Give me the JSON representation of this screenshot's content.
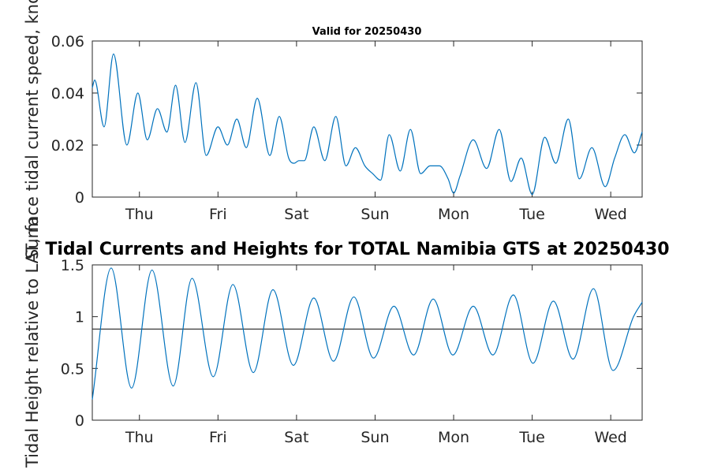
{
  "suptitle": "Tidal Currents and Heights for TOTAL Namibia GTS at 20250430",
  "colors": {
    "series": "#0072BD",
    "reference_line": "#262626"
  },
  "chart_data": [
    {
      "type": "line",
      "title": "Valid for 20250430",
      "xlabel": "",
      "ylabel": "Surface tidal current speed, knots",
      "xlim": [
        0,
        7
      ],
      "ylim": [
        0,
        0.06
      ],
      "x_ticks": [
        0.6,
        1.6,
        2.6,
        3.6,
        4.6,
        5.6,
        6.6
      ],
      "x_tick_labels": [
        "Thu",
        "Fri",
        "Sat",
        "Sun",
        "Mon",
        "Tue",
        "Wed"
      ],
      "y_ticks": [
        0,
        0.02,
        0.04,
        0.06
      ],
      "y_tick_labels": [
        "0",
        "0.02",
        "0.04",
        "0.06"
      ],
      "grid": false,
      "series": [
        {
          "x": [
            0,
            0.03,
            0.15,
            0.27,
            0.44,
            0.58,
            0.7,
            0.83,
            0.95,
            1.06,
            1.18,
            1.32,
            1.45,
            1.6,
            1.72,
            1.84,
            1.96,
            2.1,
            2.26,
            2.38,
            2.5,
            2.57,
            2.63,
            2.7,
            2.82,
            2.96,
            3.1,
            3.23,
            3.35,
            3.47,
            3.57,
            3.67,
            3.78,
            3.92,
            4.05,
            4.18,
            4.3,
            4.42,
            4.53,
            4.6,
            4.68,
            4.85,
            5.02,
            5.18,
            5.33,
            5.46,
            5.6,
            5.76,
            5.9,
            6.06,
            6.2,
            6.36,
            6.53,
            6.65,
            6.78,
            6.9,
            7.0
          ],
          "y": [
            0.042,
            0.045,
            0.027,
            0.055,
            0.02,
            0.04,
            0.022,
            0.034,
            0.025,
            0.043,
            0.021,
            0.044,
            0.016,
            0.027,
            0.02,
            0.03,
            0.019,
            0.038,
            0.016,
            0.031,
            0.015,
            0.013,
            0.014,
            0.014,
            0.027,
            0.014,
            0.031,
            0.012,
            0.019,
            0.012,
            0.009,
            0.0065,
            0.024,
            0.01,
            0.026,
            0.009,
            0.012,
            0.012,
            0.007,
            0.0015,
            0.008,
            0.022,
            0.011,
            0.026,
            0.006,
            0.015,
            0.001,
            0.023,
            0.013,
            0.03,
            0.007,
            0.019,
            0.004,
            0.015,
            0.024,
            0.017,
            0.025
          ]
        }
      ]
    },
    {
      "type": "line",
      "title": "",
      "xlabel": "",
      "ylabel": "Tidal Height relative to LAT, m",
      "xlim": [
        0,
        7
      ],
      "ylim": [
        0,
        1.5
      ],
      "x_ticks": [
        0.6,
        1.6,
        2.6,
        3.6,
        4.6,
        5.6,
        6.6
      ],
      "x_tick_labels": [
        "Thu",
        "Fri",
        "Sat",
        "Sun",
        "Mon",
        "Tue",
        "Wed"
      ],
      "y_ticks": [
        0,
        0.5,
        1,
        1.5
      ],
      "y_tick_labels": [
        "0",
        "0.5",
        "1",
        "1.5"
      ],
      "grid": false,
      "reference_line_y": 0.88,
      "series": [
        {
          "x": [
            0,
            0.24,
            0.5,
            0.76,
            1.03,
            1.27,
            1.54,
            1.79,
            2.05,
            2.3,
            2.56,
            2.82,
            3.07,
            3.33,
            3.58,
            3.84,
            4.09,
            4.34,
            4.59,
            4.85,
            5.1,
            5.36,
            5.61,
            5.87,
            6.12,
            6.38,
            6.63,
            6.89,
            7.0
          ],
          "y": [
            0.2,
            1.47,
            0.31,
            1.45,
            0.33,
            1.37,
            0.42,
            1.31,
            0.46,
            1.26,
            0.53,
            1.18,
            0.57,
            1.19,
            0.6,
            1.1,
            0.63,
            1.17,
            0.63,
            1.1,
            0.63,
            1.21,
            0.55,
            1.15,
            0.59,
            1.27,
            0.48,
            1.0,
            1.14
          ]
        }
      ]
    }
  ]
}
